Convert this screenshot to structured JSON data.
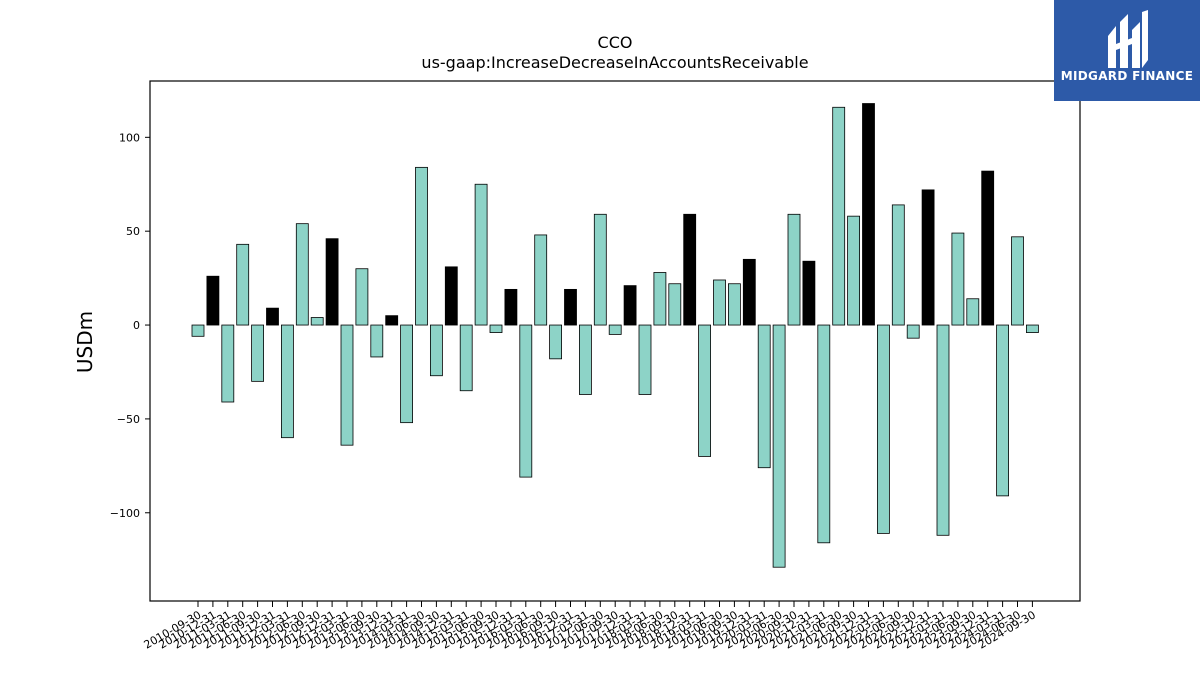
{
  "brand": {
    "name": "MIDGARD FINANCE",
    "color": "#2d5aa8"
  },
  "chart_data": {
    "type": "bar",
    "title": "CCO",
    "subtitle": "us-gaap:IncreaseDecreaseInAccountsReceivable",
    "xlabel": "",
    "ylabel": "USDm",
    "ylim": [
      -147,
      130
    ],
    "yticks": [
      -100,
      -50,
      0,
      50,
      100
    ],
    "grid": false,
    "colors": {
      "quarterly": "#8dd3c7",
      "annual": "#000000",
      "edge": "#000000"
    },
    "categories": [
      "2010-09-30",
      "2010-12-31",
      "2011-03-31",
      "2011-06-30",
      "2011-09-30",
      "2011-12-31",
      "2012-03-31",
      "2012-06-30",
      "2012-09-30",
      "2012-12-31",
      "2013-03-31",
      "2013-06-30",
      "2013-09-30",
      "2013-12-31",
      "2014-03-31",
      "2014-06-30",
      "2014-09-30",
      "2014-12-31",
      "2015-03-31",
      "2015-06-30",
      "2015-09-30",
      "2015-12-31",
      "2016-03-31",
      "2016-06-30",
      "2016-09-30",
      "2016-12-31",
      "2017-03-31",
      "2017-06-30",
      "2017-09-30",
      "2017-12-31",
      "2018-03-31",
      "2018-06-30",
      "2018-09-30",
      "2018-12-31",
      "2019-03-31",
      "2019-06-30",
      "2019-09-30",
      "2019-12-31",
      "2020-03-31",
      "2020-06-30",
      "2020-09-30",
      "2020-12-31",
      "2021-03-31",
      "2021-06-30",
      "2021-09-30",
      "2021-12-31",
      "2022-03-31",
      "2022-06-30",
      "2022-09-30",
      "2022-12-31",
      "2023-03-31",
      "2023-06-30",
      "2023-09-30",
      "2023-12-31",
      "2024-03-31",
      "2024-06-30",
      "2024-09-30"
    ],
    "values": [
      -6,
      26,
      -41,
      43,
      -30,
      9,
      -60,
      54,
      4,
      46,
      -64,
      30,
      -17,
      5,
      -52,
      84,
      -27,
      31,
      -35,
      75,
      -4,
      19,
      -81,
      48,
      -18,
      19,
      -37,
      59,
      -5,
      21,
      -37,
      28,
      22,
      59,
      -70,
      24,
      22,
      35,
      -76,
      -129,
      59,
      34,
      -116,
      116,
      58,
      118,
      -111,
      64,
      -7,
      72,
      -112,
      49,
      14,
      82,
      -91,
      47,
      -4
    ],
    "annual": [
      false,
      true,
      false,
      false,
      false,
      true,
      false,
      false,
      false,
      true,
      false,
      false,
      false,
      true,
      false,
      false,
      false,
      true,
      false,
      false,
      false,
      true,
      false,
      false,
      false,
      true,
      false,
      false,
      false,
      true,
      false,
      false,
      false,
      true,
      false,
      false,
      false,
      true,
      false,
      false,
      false,
      true,
      false,
      false,
      false,
      true,
      false,
      false,
      false,
      true,
      false,
      false,
      false,
      true,
      false,
      false,
      false
    ]
  }
}
